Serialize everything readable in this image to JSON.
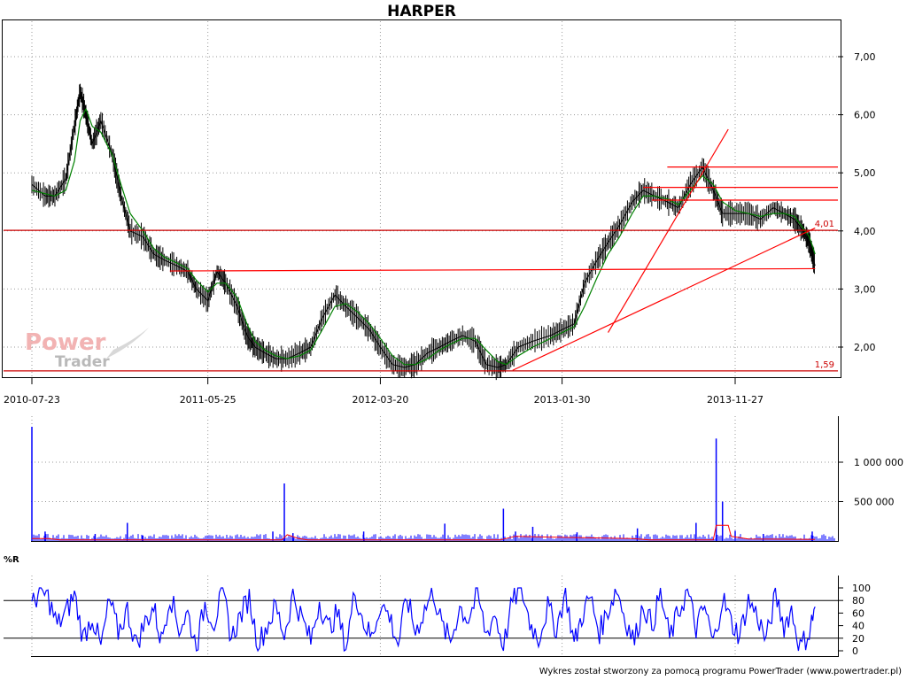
{
  "title": "HARPER",
  "footer": "Wykres został stworzony za pomocą programu PowerTrader (www.powertrader.pl)",
  "logo": {
    "word1": "Power",
    "word2": "Trader"
  },
  "colors": {
    "price": "#000000",
    "moving_average": "#008000",
    "trendlines": "#ff0000",
    "support": "#cc0000",
    "volume": "#0000ff",
    "volume_average": "#ff0000",
    "williams_r": "#0000ff",
    "grid": "#9a9a9a"
  },
  "chart_data": [
    {
      "id": "price",
      "type": "line",
      "title": "HARPER",
      "x_tick_labels": [
        "2010-07-23",
        "2011-05-25",
        "2012-03-20",
        "2013-01-30",
        "2013-11-27"
      ],
      "y_tick_labels": [
        "7,00",
        "6,00",
        "5,00",
        "4,00",
        "3,00",
        "2,00"
      ],
      "ylim": [
        1.45,
        7.55
      ],
      "grid": true,
      "series": [
        {
          "kind": "price",
          "x": [
            "2010-07-23",
            "2010-08-15",
            "2010-09-01",
            "2010-09-20",
            "2010-10-05",
            "2010-10-15",
            "2010-10-25",
            "2010-11-05",
            "2010-11-20",
            "2010-12-10",
            "2010-12-25",
            "2011-01-10",
            "2011-02-01",
            "2011-02-20",
            "2011-03-10",
            "2011-04-01",
            "2011-04-20",
            "2011-05-05",
            "2011-05-25",
            "2011-06-10",
            "2011-06-25",
            "2011-07-15",
            "2011-08-01",
            "2011-08-15",
            "2011-09-01",
            "2011-09-20",
            "2011-10-10",
            "2011-11-01",
            "2011-11-20",
            "2011-12-10",
            "2012-01-01",
            "2012-01-20",
            "2012-02-10",
            "2012-03-01",
            "2012-03-20",
            "2012-04-10",
            "2012-05-01",
            "2012-05-20",
            "2012-06-10",
            "2012-07-01",
            "2012-07-20",
            "2012-08-10",
            "2012-09-01",
            "2012-09-20",
            "2012-10-10",
            "2012-10-25",
            "2012-11-15",
            "2012-12-10",
            "2013-01-10",
            "2013-01-30",
            "2013-02-20",
            "2013-03-10",
            "2013-04-01",
            "2013-04-20",
            "2013-05-10",
            "2013-06-01",
            "2013-06-20",
            "2013-07-10",
            "2013-08-01",
            "2013-08-20",
            "2013-09-10",
            "2013-10-01",
            "2013-10-20",
            "2013-11-05",
            "2013-11-27",
            "2013-12-20",
            "2014-01-10",
            "2014-02-01",
            "2014-02-20",
            "2014-03-10",
            "2014-03-25",
            "2014-04-05",
            "2014-04-15"
          ],
          "y": [
            4.8,
            4.6,
            4.6,
            4.9,
            5.8,
            6.4,
            6.0,
            5.5,
            5.9,
            5.3,
            4.6,
            4.0,
            3.9,
            3.6,
            3.5,
            3.4,
            3.3,
            3.0,
            2.8,
            3.3,
            3.1,
            2.7,
            2.2,
            2.0,
            1.9,
            1.8,
            1.8,
            1.9,
            2.0,
            2.5,
            2.9,
            2.7,
            2.5,
            2.3,
            2.0,
            1.7,
            1.65,
            1.7,
            1.9,
            2.0,
            2.1,
            2.2,
            2.1,
            1.7,
            1.65,
            1.7,
            2.0,
            2.1,
            2.2,
            2.3,
            2.4,
            3.1,
            3.5,
            3.8,
            4.1,
            4.5,
            4.7,
            4.6,
            4.5,
            4.4,
            4.8,
            5.1,
            4.7,
            4.3,
            4.3,
            4.3,
            4.2,
            4.4,
            4.3,
            4.2,
            4.0,
            3.8,
            3.4
          ]
        },
        {
          "kind": "moving_average",
          "x": [
            "2010-07-23",
            "2010-09-01",
            "2010-09-20",
            "2010-10-05",
            "2010-10-15",
            "2010-10-25",
            "2010-11-05",
            "2010-11-20",
            "2010-12-10",
            "2010-12-25",
            "2011-01-10",
            "2011-02-01",
            "2011-02-20",
            "2011-03-10",
            "2011-04-01",
            "2011-04-20",
            "2011-05-05",
            "2011-05-25",
            "2011-06-10",
            "2011-06-25",
            "2011-07-15",
            "2011-08-01",
            "2011-08-15",
            "2011-09-01",
            "2011-09-20",
            "2011-10-10",
            "2011-11-01",
            "2011-11-20",
            "2011-12-10",
            "2012-01-01",
            "2012-01-20",
            "2012-02-10",
            "2012-03-01",
            "2012-03-20",
            "2012-04-10",
            "2012-05-01",
            "2012-05-20",
            "2012-06-10",
            "2012-07-01",
            "2012-07-20",
            "2012-08-10",
            "2012-09-01",
            "2012-09-20",
            "2012-10-10",
            "2012-10-25",
            "2012-11-15",
            "2012-12-10",
            "2013-01-10",
            "2013-01-30",
            "2013-02-20",
            "2013-03-10",
            "2013-04-01",
            "2013-04-20",
            "2013-05-10",
            "2013-06-01",
            "2013-06-20",
            "2013-07-10",
            "2013-08-01",
            "2013-08-20",
            "2013-09-10",
            "2013-10-01",
            "2013-10-20",
            "2013-11-05",
            "2013-11-27",
            "2013-12-20",
            "2014-01-10",
            "2014-02-01",
            "2014-02-20",
            "2014-03-10",
            "2014-03-25",
            "2014-04-05",
            "2014-04-15"
          ],
          "y": [
            4.7,
            4.6,
            4.7,
            5.2,
            5.9,
            6.1,
            5.8,
            5.7,
            5.3,
            4.8,
            4.3,
            4.0,
            3.7,
            3.55,
            3.45,
            3.35,
            3.15,
            2.95,
            3.1,
            3.1,
            2.85,
            2.4,
            2.1,
            1.95,
            1.85,
            1.8,
            1.85,
            1.95,
            2.3,
            2.7,
            2.75,
            2.6,
            2.4,
            2.15,
            1.85,
            1.7,
            1.7,
            1.8,
            1.95,
            2.05,
            2.15,
            2.15,
            1.95,
            1.75,
            1.7,
            1.85,
            2.0,
            2.15,
            2.25,
            2.35,
            2.7,
            3.2,
            3.6,
            3.9,
            4.3,
            4.6,
            4.6,
            4.55,
            4.45,
            4.7,
            4.95,
            4.8,
            4.5,
            4.35,
            4.3,
            4.25,
            4.3,
            4.3,
            4.25,
            4.05,
            3.9,
            3.6
          ]
        }
      ],
      "trendlines": [
        {
          "from": [
            "2013-04-20",
            2.25
          ],
          "to": [
            "2013-11-15",
            5.75
          ]
        },
        {
          "from": [
            "2012-11-05",
            1.6
          ],
          "to": [
            "2014-04-15",
            4.05
          ]
        },
        {
          "from": [
            "2011-03-20",
            3.31
          ],
          "to": [
            "2014-04-15",
            3.35
          ]
        }
      ],
      "horizontal_levels": [
        {
          "y": 4.01,
          "label": "4,01",
          "from": "2010-07-01",
          "to": "2014-04-15"
        },
        {
          "y": 1.59,
          "label": "1,59",
          "from": "2010-07-01",
          "to": "2014-04-15"
        },
        {
          "y": 5.1,
          "from": "2013-08-01",
          "to": "2014-04-15"
        },
        {
          "y": 4.75,
          "from": "2013-06-20",
          "to": "2014-04-15"
        },
        {
          "y": 4.53,
          "from": "2013-07-05",
          "to": "2014-04-15"
        }
      ]
    },
    {
      "id": "volume",
      "type": "bar",
      "y_tick_labels": [
        "1 000 000",
        "500 000"
      ],
      "ylim": [
        0,
        1450000
      ],
      "spikes": [
        {
          "x": "2010-07-23",
          "value": 1450000
        },
        {
          "x": "2010-08-15",
          "value": 120000
        },
        {
          "x": "2010-11-10",
          "value": 90000
        },
        {
          "x": "2011-01-05",
          "value": 230000
        },
        {
          "x": "2011-02-01",
          "value": 70000
        },
        {
          "x": "2011-09-15",
          "value": 120000
        },
        {
          "x": "2011-10-05",
          "value": 730000
        },
        {
          "x": "2011-10-20",
          "value": 100000
        },
        {
          "x": "2012-02-20",
          "value": 120000
        },
        {
          "x": "2012-07-10",
          "value": 220000
        },
        {
          "x": "2012-10-20",
          "value": 410000
        },
        {
          "x": "2012-11-10",
          "value": 120000
        },
        {
          "x": "2012-12-10",
          "value": 180000
        },
        {
          "x": "2013-02-25",
          "value": 110000
        },
        {
          "x": "2013-06-10",
          "value": 160000
        },
        {
          "x": "2013-09-20",
          "value": 230000
        },
        {
          "x": "2013-10-25",
          "value": 1300000
        },
        {
          "x": "2013-11-05",
          "value": 500000
        },
        {
          "x": "2013-11-27",
          "value": 130000
        },
        {
          "x": "2014-01-15",
          "value": 90000
        },
        {
          "x": "2014-04-10",
          "value": 120000
        }
      ],
      "average": {
        "x": [
          "2010-07-23",
          "2010-08-20",
          "2010-09-10",
          "2011-10-01",
          "2011-10-10",
          "2011-10-30",
          "2011-11-15",
          "2012-10-15",
          "2012-11-10",
          "2013-01-01",
          "2013-06-01",
          "2013-07-01",
          "2013-10-20",
          "2013-10-25",
          "2013-11-15",
          "2013-11-20",
          "2013-12-20",
          "2014-04-15"
        ],
        "y": [
          30000,
          30000,
          15000,
          15000,
          80000,
          30000,
          15000,
          15000,
          60000,
          50000,
          30000,
          15000,
          15000,
          200000,
          200000,
          60000,
          25000,
          20000
        ]
      }
    },
    {
      "id": "williams_r",
      "type": "line",
      "label": "%R",
      "y_tick_labels": [
        "100",
        "80",
        "60",
        "40",
        "20",
        "0"
      ],
      "ylim": [
        0,
        100
      ],
      "reference_levels": [
        80,
        20
      ],
      "series": [
        {
          "kind": "oscillator",
          "x": [
            "2010-07-23",
            "2010-08-05",
            "2010-08-20",
            "2010-09-05",
            "2010-09-20",
            "2010-10-05",
            "2010-10-20",
            "2010-11-05",
            "2010-11-20",
            "2010-12-05",
            "2010-12-20",
            "2011-01-05",
            "2011-01-20",
            "2011-02-05",
            "2011-02-20",
            "2011-03-05",
            "2011-03-20",
            "2011-04-05",
            "2011-04-20",
            "2011-05-05",
            "2011-05-20",
            "2011-06-05",
            "2011-06-20",
            "2011-07-05",
            "2011-07-20",
            "2011-08-05",
            "2011-08-20",
            "2011-09-05",
            "2011-09-20",
            "2011-10-05",
            "2011-10-20",
            "2011-11-05",
            "2011-11-20",
            "2011-12-05",
            "2011-12-20",
            "2012-01-05",
            "2012-01-20",
            "2012-02-05",
            "2012-02-20",
            "2012-03-05",
            "2012-03-20",
            "2012-04-05",
            "2012-04-20",
            "2012-05-05",
            "2012-05-20",
            "2012-06-05",
            "2012-06-20",
            "2012-07-05",
            "2012-07-20",
            "2012-08-05",
            "2012-08-20",
            "2012-09-05",
            "2012-09-20",
            "2012-10-05",
            "2012-10-20",
            "2012-11-05",
            "2012-11-20",
            "2012-12-05",
            "2012-12-20",
            "2013-01-05",
            "2013-01-20",
            "2013-02-05",
            "2013-02-20",
            "2013-03-05",
            "2013-03-20",
            "2013-04-05",
            "2013-04-20",
            "2013-05-05",
            "2013-05-20",
            "2013-06-05",
            "2013-06-20",
            "2013-07-05",
            "2013-07-20",
            "2013-08-05",
            "2013-08-20",
            "2013-09-05",
            "2013-09-20",
            "2013-10-05",
            "2013-10-20",
            "2013-11-05",
            "2013-11-20",
            "2013-12-05",
            "2013-12-20",
            "2014-01-05",
            "2014-01-20",
            "2014-02-05",
            "2014-02-20",
            "2014-03-05",
            "2014-03-20",
            "2014-04-05",
            "2014-04-15"
          ],
          "y": [
            70,
            95,
            85,
            40,
            60,
            90,
            20,
            55,
            5,
            80,
            30,
            65,
            10,
            45,
            70,
            15,
            90,
            35,
            60,
            5,
            75,
            45,
            95,
            20,
            55,
            85,
            10,
            40,
            70,
            25,
            90,
            50,
            15,
            80,
            35,
            60,
            5,
            95,
            45,
            20,
            75,
            55,
            10,
            85,
            30,
            65,
            95,
            40,
            15,
            70,
            50,
            90,
            25,
            60,
            5,
            80,
            100,
            45,
            20,
            70,
            35,
            95,
            10,
            55,
            85,
            30,
            65,
            100,
            50,
            15,
            75,
            40,
            90,
            20,
            60,
            95,
            35,
            70,
            10,
            85,
            45,
            25,
            80,
            55,
            15,
            90,
            40,
            65,
            5,
            30,
            70
          ]
        }
      ]
    }
  ]
}
